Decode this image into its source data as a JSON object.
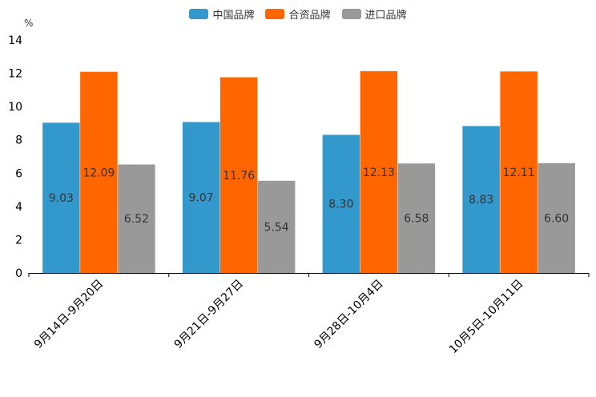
{
  "chart_data": {
    "type": "bar",
    "title": "",
    "xlabel": "",
    "ylabel": "%",
    "ylim": [
      0,
      14
    ],
    "yticks": [
      0,
      2,
      4,
      6,
      8,
      10,
      12,
      14
    ],
    "categories": [
      "9月14日-9月20日",
      "9月21日-9月27日",
      "9月28日-10月4日",
      "10月5日-10月11日"
    ],
    "series": [
      {
        "name": "中国品牌",
        "color": "#3399cc",
        "values": [
          9.03,
          9.07,
          8.3,
          8.83
        ],
        "labels": [
          "9.03",
          "9.07",
          "8.30",
          "8.83"
        ]
      },
      {
        "name": "合资品牌",
        "color": "#ff6600",
        "values": [
          12.09,
          11.76,
          12.13,
          12.11
        ],
        "labels": [
          "12.09",
          "11.76",
          "12.13",
          "12.11"
        ]
      },
      {
        "name": "进口品牌",
        "color": "#999999",
        "values": [
          6.52,
          5.54,
          6.58,
          6.6
        ],
        "labels": [
          "6.52",
          "5.54",
          "6.58",
          "6.60"
        ]
      }
    ],
    "legend_position": "top-center",
    "grid": false
  }
}
